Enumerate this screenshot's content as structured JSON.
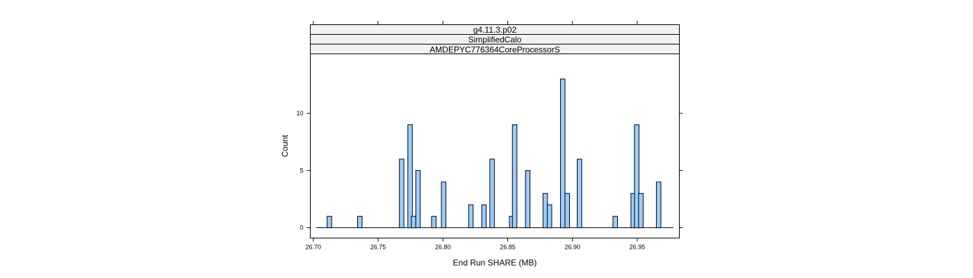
{
  "chart_data": {
    "type": "bar",
    "title": "",
    "strips": [
      "g4.11.3.p02",
      "SimplifiedCalo",
      "AMDEPYC776364CoreProcessorS"
    ],
    "xlabel": "End Run SHARE (MB)",
    "ylabel": "Count",
    "xlim": [
      26.6977,
      26.9825
    ],
    "ylim": [
      -0.9,
      15.2
    ],
    "baseline_range": [
      26.702,
      26.978
    ],
    "bin_width": 0.0035,
    "x_ticks": [
      {
        "value": 26.7,
        "label": "26.70"
      },
      {
        "value": 26.75,
        "label": "26.75"
      },
      {
        "value": 26.8,
        "label": "26.80"
      },
      {
        "value": 26.85,
        "label": "26.85"
      },
      {
        "value": 26.9,
        "label": "26.90"
      },
      {
        "value": 26.95,
        "label": "26.95"
      }
    ],
    "y_ticks": [
      {
        "value": 0,
        "label": "0"
      },
      {
        "value": 5,
        "label": "5"
      },
      {
        "value": 10,
        "label": "10"
      }
    ],
    "bins": [
      {
        "x": 26.7124,
        "count": 1
      },
      {
        "x": 26.7359,
        "count": 1
      },
      {
        "x": 26.7682,
        "count": 6
      },
      {
        "x": 26.7747,
        "count": 9
      },
      {
        "x": 26.7774,
        "count": 1
      },
      {
        "x": 26.7808,
        "count": 5
      },
      {
        "x": 26.793,
        "count": 1
      },
      {
        "x": 26.8006,
        "count": 4
      },
      {
        "x": 26.8216,
        "count": 2
      },
      {
        "x": 26.8317,
        "count": 2
      },
      {
        "x": 26.838,
        "count": 6
      },
      {
        "x": 26.8531,
        "count": 1
      },
      {
        "x": 26.8554,
        "count": 9
      },
      {
        "x": 26.8655,
        "count": 5
      },
      {
        "x": 26.879,
        "count": 3
      },
      {
        "x": 26.8823,
        "count": 2
      },
      {
        "x": 26.8925,
        "count": 13
      },
      {
        "x": 26.896,
        "count": 3
      },
      {
        "x": 26.9054,
        "count": 6
      },
      {
        "x": 26.933,
        "count": 1
      },
      {
        "x": 26.9469,
        "count": 3
      },
      {
        "x": 26.9496,
        "count": 9
      },
      {
        "x": 26.9528,
        "count": 3
      },
      {
        "x": 26.9665,
        "count": 4
      }
    ],
    "grid": false,
    "legend": "none",
    "colors": {
      "bar_fill": "#99ccff",
      "bar_stroke": "#000000",
      "strip_fill": "#f2f2f2",
      "frame": "#000000"
    }
  }
}
